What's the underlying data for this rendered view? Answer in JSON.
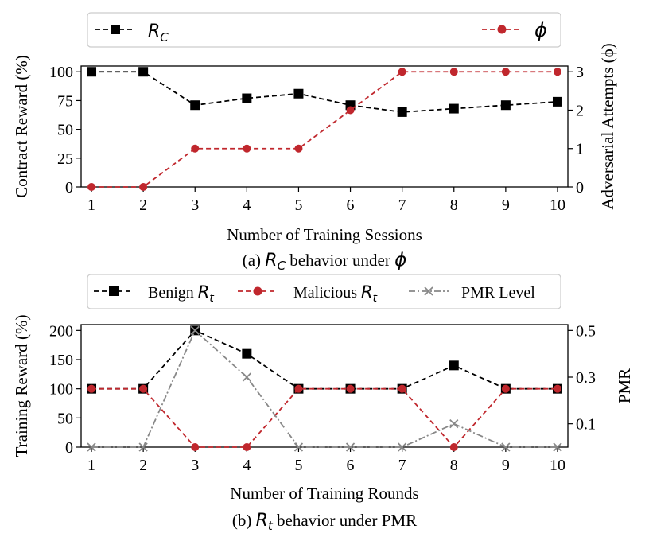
{
  "colors": {
    "black": "#000000",
    "red": "#c0272d",
    "gray": "#888888",
    "frame": "#000000",
    "legend_border": "#cccccc"
  },
  "chart_data": [
    {
      "type": "line",
      "title": "behavior under",
      "title_parts": {
        "prefix": "(a) ",
        "sym1": "R",
        "sub1": "C",
        "mid": " behavior under ",
        "sym2": "ϕ"
      },
      "xlabel": "Number of Training Sessions",
      "ylabel_left": "Contract Reward (%)",
      "ylabel_right": "Adversarial Attempts (ϕ)",
      "x": [
        1,
        2,
        3,
        4,
        5,
        6,
        7,
        8,
        9,
        10
      ],
      "x_ticks": [
        "1",
        "2",
        "3",
        "4",
        "5",
        "6",
        "7",
        "8",
        "9",
        "10"
      ],
      "ylim_left": [
        0,
        105
      ],
      "ylim_right": [
        0,
        3.15
      ],
      "y_ticks_left": [
        "0",
        "25",
        "50",
        "75",
        "100"
      ],
      "y_ticks_right": [
        "0",
        "1",
        "2",
        "3"
      ],
      "series": [
        {
          "name": "R_C",
          "legend_sym": "R",
          "legend_sub": "C",
          "axis": "left",
          "color": "black",
          "marker": "square",
          "values": [
            100,
            100,
            71,
            77,
            81,
            71,
            65,
            68,
            71,
            74
          ]
        },
        {
          "name": "ϕ",
          "legend_sym": "ϕ",
          "legend_sub": "",
          "axis": "right",
          "color": "red",
          "marker": "circle",
          "values": [
            0,
            0,
            1,
            1,
            1,
            2,
            3,
            3,
            3,
            3
          ]
        }
      ]
    },
    {
      "type": "line",
      "title": "behavior under PMR",
      "title_parts": {
        "prefix": "(b) ",
        "sym1": "R",
        "sub1": "t",
        "mid": " behavior under PMR",
        "sym2": ""
      },
      "xlabel": "Number of Training Rounds",
      "ylabel_left": "Training Reward (%)",
      "ylabel_right": "PMR",
      "x": [
        1,
        2,
        3,
        4,
        5,
        6,
        7,
        8,
        9,
        10
      ],
      "x_ticks": [
        "1",
        "2",
        "3",
        "4",
        "5",
        "6",
        "7",
        "8",
        "9",
        "10"
      ],
      "ylim_left": [
        0,
        210
      ],
      "ylim_right": [
        0,
        0.525
      ],
      "y_ticks_left": [
        "0",
        "50",
        "100",
        "150",
        "200"
      ],
      "y_ticks_right": [
        "0.1",
        "0.3",
        "0.5"
      ],
      "series": [
        {
          "name": "Benign R_t",
          "legend_label": "Benign ",
          "legend_sym": "R",
          "legend_sub": "t",
          "axis": "left",
          "color": "black",
          "marker": "square",
          "values": [
            100,
            100,
            200,
            160,
            100,
            100,
            100,
            140,
            100,
            100
          ]
        },
        {
          "name": "Malicious R_t",
          "legend_label": "Malicious ",
          "legend_sym": "R",
          "legend_sub": "t",
          "axis": "left",
          "color": "red",
          "marker": "circle",
          "values": [
            100,
            100,
            0,
            0,
            100,
            100,
            100,
            0,
            100,
            100
          ]
        },
        {
          "name": "PMR Level",
          "legend_label": "PMR Level",
          "legend_sym": "",
          "legend_sub": "",
          "axis": "right",
          "color": "gray",
          "marker": "x",
          "values": [
            0,
            0,
            0.5,
            0.3,
            0,
            0,
            0,
            0.1,
            0,
            0
          ]
        }
      ]
    }
  ]
}
